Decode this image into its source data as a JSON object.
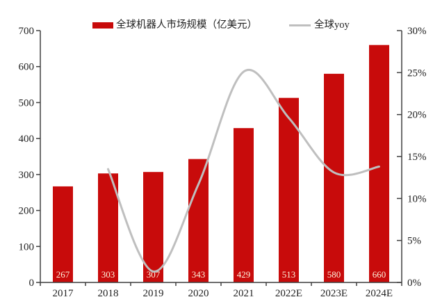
{
  "chart_data": {
    "type": "bar+line",
    "title": "",
    "categories": [
      "2017",
      "2018",
      "2019",
      "2020",
      "2021",
      "2022E",
      "2023E",
      "2024E"
    ],
    "series": [
      {
        "name": "全球机器人市场规模（亿美元）",
        "type": "bar",
        "axis": "left",
        "values": [
          267,
          303,
          307,
          343,
          429,
          513,
          580,
          660
        ],
        "data_labels": [
          "267",
          "303",
          "307",
          "343",
          "429",
          "513",
          "580",
          "660"
        ]
      },
      {
        "name": "全球yoy",
        "type": "line",
        "axis": "right",
        "values_pct": [
          null,
          13.5,
          1.3,
          11.7,
          25.1,
          19.6,
          13.1,
          13.8
        ]
      }
    ],
    "y_left": {
      "min": 0,
      "max": 700,
      "step": 100,
      "ticks": [
        "0",
        "100",
        "200",
        "300",
        "400",
        "500",
        "600",
        "700"
      ]
    },
    "y_right": {
      "min": 0,
      "max": 30,
      "step": 5,
      "ticks": [
        "0%",
        "5%",
        "10%",
        "15%",
        "20%",
        "25%",
        "30%"
      ]
    },
    "grid": false,
    "legend_position": "top",
    "line_smooth": true
  },
  "legend": {
    "bar_label": "全球机器人市场规模（亿美元）",
    "line_label": "全球yoy"
  },
  "colors": {
    "bar": "#c80b0b",
    "line": "#bfbfbf",
    "axis": "#3f3f3f",
    "text": "#1f1f1f",
    "bar_label_text": "#fdf4de",
    "background": "#ffffff"
  }
}
